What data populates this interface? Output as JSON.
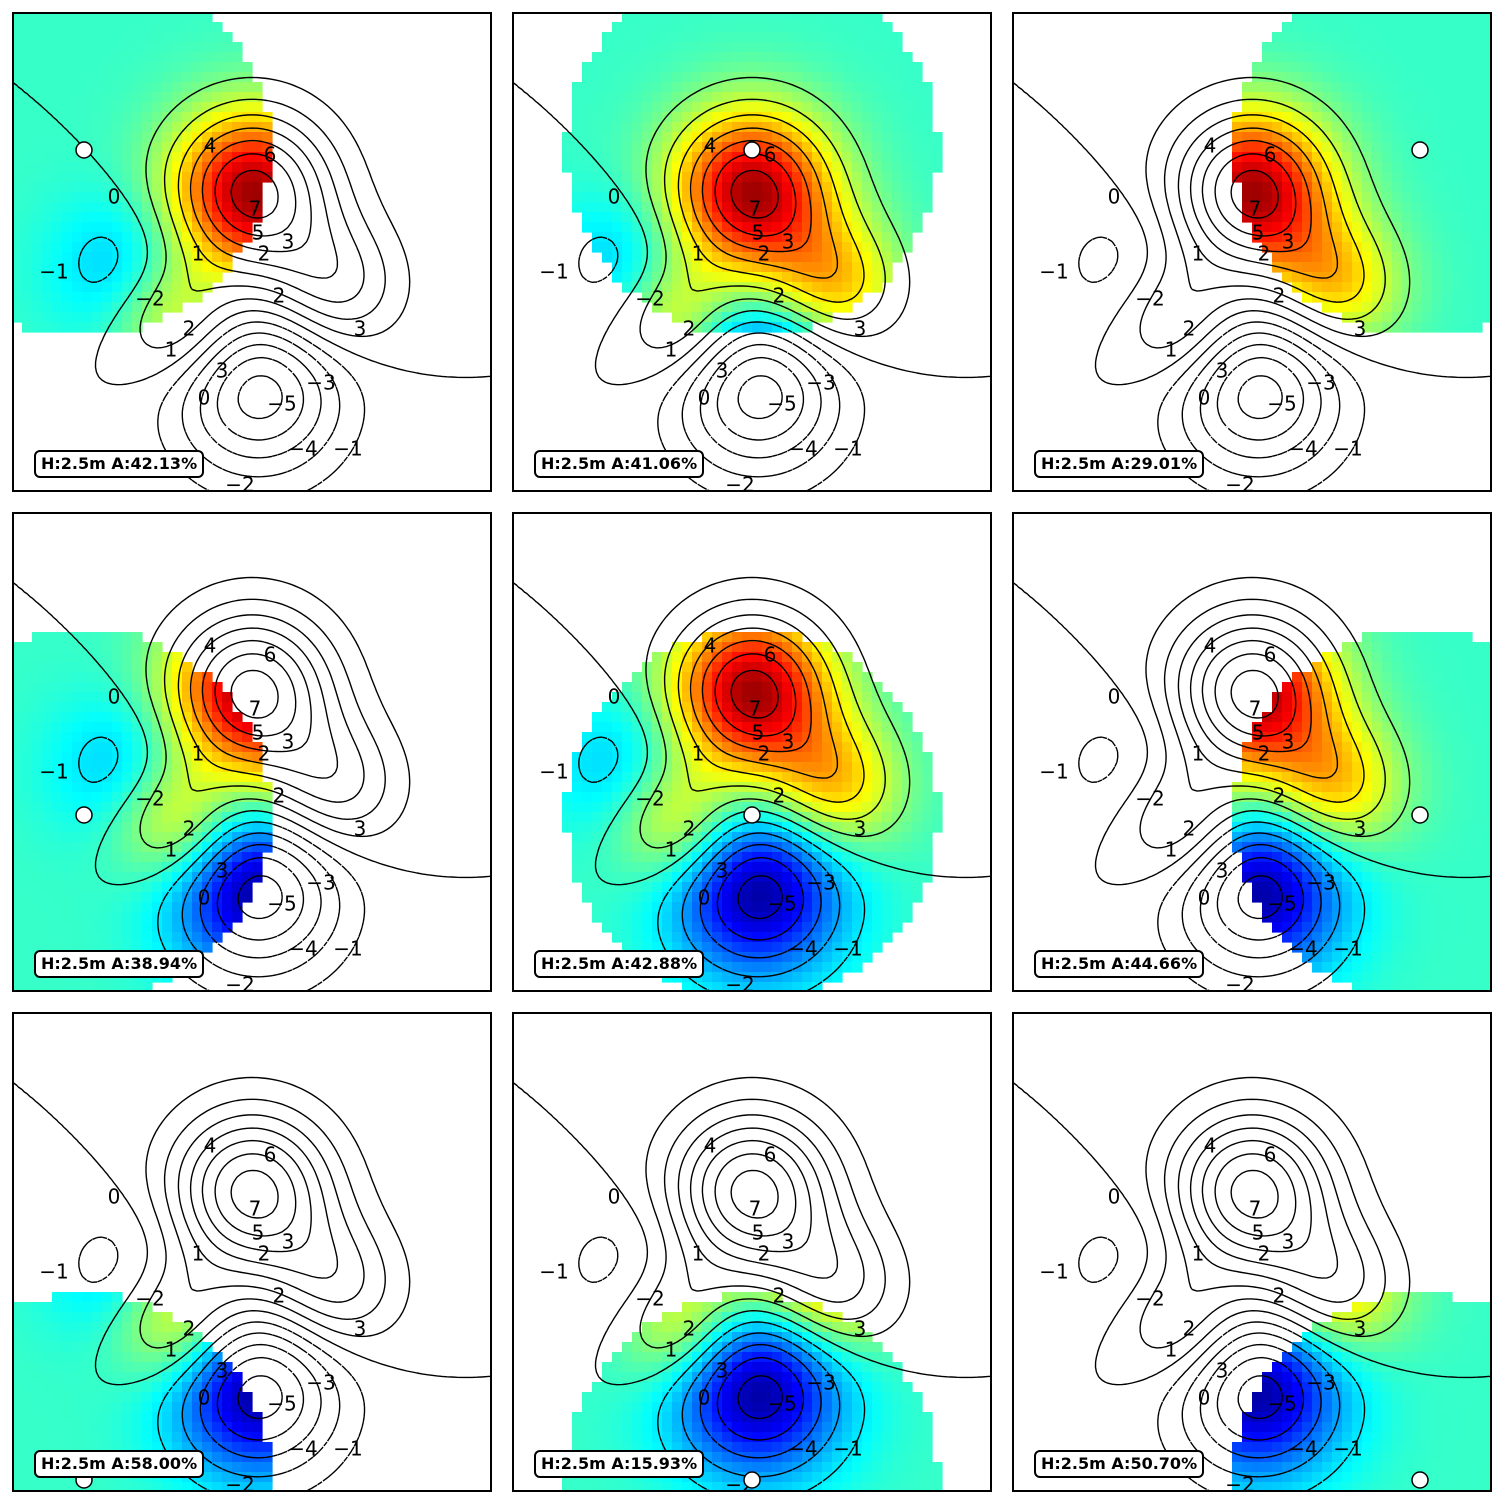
{
  "chart_data": {
    "type": "heatmap",
    "description_grid": "3 x 3 small multiples; each panel shows a fixed contour map of a field with a highlighted region around a marker",
    "contour_field": {
      "sources": [
        {
          "kind": "peak",
          "x": 0.0,
          "y": 1.0,
          "amplitude": 7.5
        },
        {
          "kind": "peak",
          "x": 1.35,
          "y": -0.6,
          "amplitude": 3.6
        },
        {
          "kind": "peak",
          "x": -1.25,
          "y": -1.15,
          "amplitude": 3.3
        },
        {
          "kind": "trough",
          "x": -2.1,
          "y": -0.3,
          "amplitude": -1.8
        },
        {
          "kind": "trough",
          "x": 0.1,
          "y": -2.3,
          "amplitude": -5.7
        }
      ],
      "contour_levels": [
        -5,
        -4,
        -3,
        -2,
        -1,
        0,
        1,
        2,
        3,
        4,
        5,
        6,
        7
      ],
      "negative_style": "dashed",
      "contour_labels": [
        {
          "text": "4",
          "x": -0.7,
          "y": 1.75
        },
        {
          "text": "6",
          "x": 0.3,
          "y": 1.6
        },
        {
          "text": "7",
          "x": 0.05,
          "y": 0.7
        },
        {
          "text": "5",
          "x": 0.1,
          "y": 0.3
        },
        {
          "text": "3",
          "x": 0.6,
          "y": 0.15
        },
        {
          "text": "2",
          "x": 0.2,
          "y": -0.05
        },
        {
          "text": "1",
          "x": -0.9,
          "y": -0.05
        },
        {
          "text": "0",
          "x": -2.3,
          "y": 0.9
        },
        {
          "text": "2",
          "x": 0.45,
          "y": -0.75
        },
        {
          "text": "3",
          "x": 1.8,
          "y": -1.3
        },
        {
          "text": "−1",
          "x": -3.3,
          "y": -0.35
        },
        {
          "text": "−2",
          "x": -1.7,
          "y": -0.8
        },
        {
          "text": "2",
          "x": -1.05,
          "y": -1.3
        },
        {
          "text": "1",
          "x": -1.35,
          "y": -1.65
        },
        {
          "text": "3",
          "x": -0.5,
          "y": -2.0
        },
        {
          "text": "0",
          "x": -0.8,
          "y": -2.45
        },
        {
          "text": "−5",
          "x": 0.5,
          "y": -2.55
        },
        {
          "text": "−3",
          "x": 1.15,
          "y": -2.2
        },
        {
          "text": "−4",
          "x": 0.85,
          "y": -3.3
        },
        {
          "text": "−1",
          "x": 1.6,
          "y": -3.3
        },
        {
          "text": "−2",
          "x": -0.2,
          "y": -3.9
        }
      ],
      "color_scale": "jet"
    },
    "panels": [
      {
        "label": "H:2.5m A:42.13%",
        "marker": {
          "x": -2.8,
          "y": 1.7
        }
      },
      {
        "label": "H:2.5m A:41.06%",
        "marker": {
          "x": 0.0,
          "y": 1.7
        }
      },
      {
        "label": "H:2.5m A:29.01%",
        "marker": {
          "x": 2.8,
          "y": 1.7
        }
      },
      {
        "label": "H:2.5m A:38.94%",
        "marker": {
          "x": -2.8,
          "y": -1.05
        }
      },
      {
        "label": "H:2.5m A:42.88%",
        "marker": {
          "x": 0.0,
          "y": -1.05
        }
      },
      {
        "label": "H:2.5m A:44.66%",
        "marker": {
          "x": 2.8,
          "y": -1.05
        }
      },
      {
        "label": "H:2.5m A:58.00%",
        "marker": {
          "x": -2.8,
          "y": -3.8
        }
      },
      {
        "label": "H:2.5m A:15.93%",
        "marker": {
          "x": 0.0,
          "y": -3.8
        }
      },
      {
        "label": "H:2.5m A:50.70%",
        "marker": {
          "x": 2.8,
          "y": -3.8
        }
      }
    ],
    "xlim": [
      -4,
      4
    ],
    "ylim": [
      -4,
      4
    ],
    "grid": false,
    "legend": "none"
  },
  "colors": {
    "frame": "#000000",
    "marker_fill": "#ffffff",
    "marker_edge": "#000000",
    "contour": "#000000"
  }
}
